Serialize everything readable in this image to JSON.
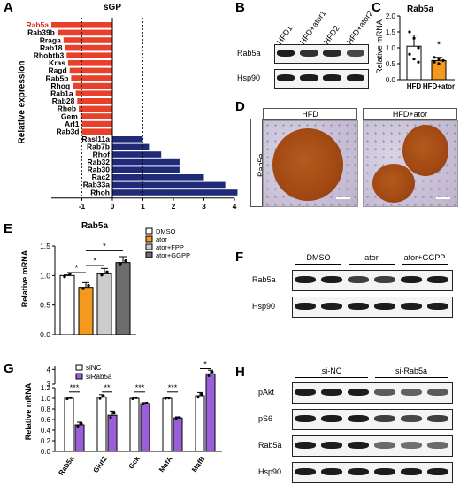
{
  "panels": {
    "A": {
      "letter": "A",
      "title": "sGP",
      "ylabel": "Relative expression",
      "highlight_gene": "Rab5a"
    },
    "B": {
      "letter": "B",
      "lanes": [
        "HFD1",
        "HFD+ator1",
        "HFD2",
        "HFD+ator2"
      ],
      "rows": [
        "Rab5a",
        "Hsp90"
      ],
      "rab5a_intensity": [
        1.0,
        0.85,
        0.9,
        0.7
      ]
    },
    "C": {
      "letter": "C",
      "title": "Rab5a",
      "ylabel": "Relative mRNA",
      "star": "*"
    },
    "D": {
      "letter": "D",
      "headers": [
        "HFD",
        "HFD+ator"
      ],
      "side_label": "Rab5a"
    },
    "E": {
      "letter": "E",
      "title": "Rab5a",
      "ylabel": "Relative mRNA",
      "legend": [
        "DMSO",
        "ator",
        "ator+FPP",
        "ator+GGPP"
      ],
      "stars": [
        "*",
        "*",
        "*"
      ]
    },
    "F": {
      "letter": "F",
      "groups": [
        "DMSO",
        "ator",
        "ator+GGPP"
      ],
      "rows": [
        "Rab5a",
        "Hsp90"
      ],
      "rab5a_intensity": [
        1.0,
        1.0,
        0.75,
        0.75,
        1.0,
        1.0
      ]
    },
    "G": {
      "letter": "G",
      "ylabel": "Relative mRNA",
      "legend": [
        "siNC",
        "siRab5a"
      ],
      "stars": [
        "***",
        "**",
        "***",
        "***",
        "*"
      ]
    },
    "H": {
      "letter": "H",
      "groups": [
        "si-NC",
        "si-Rab5a"
      ],
      "rows": [
        "pAkt",
        "pS6",
        "Rab5a",
        "Hsp90"
      ],
      "intensity": {
        "pAkt": [
          1.0,
          1.0,
          1.0,
          0.55,
          0.5,
          0.55
        ],
        "pS6": [
          1.0,
          1.0,
          1.0,
          0.75,
          0.7,
          0.75
        ],
        "Rab5a": [
          1.0,
          1.0,
          1.0,
          0.45,
          0.4,
          0.45
        ],
        "Hsp90": [
          1.0,
          1.0,
          1.0,
          1.0,
          1.0,
          1.0
        ]
      }
    }
  },
  "chart_data": [
    {
      "panel": "A",
      "type": "bar",
      "orientation": "horizontal",
      "title": "sGP",
      "ylabel": "Relative expression",
      "categories": [
        "Rab5a",
        "Rab39b",
        "Rraga",
        "Rab18",
        "Rhobtb3",
        "Kras",
        "Ragd",
        "Rab5b",
        "Rhoq",
        "Rab1a",
        "Rab28",
        "Rheb",
        "Gem",
        "Arl1",
        "Rab3d",
        "Rasl11a",
        "Rab7b",
        "Rhof",
        "Rab32",
        "Rab30",
        "Rac2",
        "Rab33a",
        "Rhoh"
      ],
      "values": [
        -2.0,
        -1.8,
        -1.6,
        -1.55,
        -1.5,
        -1.45,
        -1.4,
        -1.35,
        -1.3,
        -1.2,
        -1.15,
        -1.1,
        -1.05,
        -1.0,
        -1.0,
        1.0,
        1.2,
        1.6,
        2.2,
        2.2,
        3.0,
        3.7,
        4.1
      ],
      "colors": {
        "down": "#e8402a",
        "up": "#1f2a78"
      },
      "xlim": [
        -2,
        4
      ],
      "xticks": [
        "-1",
        "0",
        "1",
        "2",
        "3",
        "4"
      ],
      "reference_lines": [
        -1,
        1
      ]
    },
    {
      "panel": "C",
      "type": "bar",
      "title": "Rab5a",
      "ylabel": "Relative mRNA",
      "categories": [
        "HFD",
        "HFD+ator"
      ],
      "values": [
        1.05,
        0.6
      ],
      "errors": [
        0.35,
        0.1
      ],
      "colors": [
        "#ffffff",
        "#f39a1e"
      ],
      "ylim": [
        0,
        2.0
      ],
      "yticks": [
        "0.0",
        "0.5",
        "1.0",
        "1.5",
        "2.0"
      ],
      "points": [
        [
          1.5,
          1.3,
          1.0,
          0.8,
          0.65,
          0.55
        ],
        [
          0.7,
          0.65,
          0.6,
          0.55,
          0.5
        ]
      ]
    },
    {
      "panel": "E",
      "type": "bar",
      "title": "Rab5a",
      "ylabel": "Relative mRNA",
      "categories": [
        "DMSO",
        "ator",
        "ator+FPP",
        "ator+GGPP"
      ],
      "values": [
        1.0,
        0.8,
        1.03,
        1.22
      ],
      "errors": [
        0.01,
        0.08,
        0.09,
        0.1
      ],
      "colors": [
        "#ffffff",
        "#f39a1e",
        "#cccccc",
        "#6d6d6d"
      ],
      "ylim": [
        0,
        1.5
      ],
      "yticks": [
        "0.0",
        "0.5",
        "1.0",
        "1.5"
      ]
    },
    {
      "panel": "G",
      "type": "bar",
      "ylabel": "Relative mRNA",
      "categories": [
        "Rab5a",
        "Glut2",
        "Gck",
        "MafA",
        "MafB"
      ],
      "series": [
        {
          "name": "siNC",
          "values": [
            1.0,
            1.02,
            1.0,
            1.0,
            1.05
          ],
          "errors": [
            0.02,
            0.05,
            0.02,
            0.01,
            0.06
          ]
        },
        {
          "name": "siRab5a",
          "values": [
            0.5,
            0.68,
            0.9,
            0.63,
            3.7
          ],
          "errors": [
            0.05,
            0.08,
            0.02,
            0.02,
            0.25
          ]
        }
      ],
      "colors": [
        "#ffffff",
        "#9a5fd8"
      ],
      "ylim": [
        0,
        4.2
      ],
      "yticks": [
        "0.0",
        "0.2",
        "0.4",
        "0.6",
        "0.8",
        "1.0",
        "1.2",
        "3",
        "4"
      ]
    }
  ]
}
